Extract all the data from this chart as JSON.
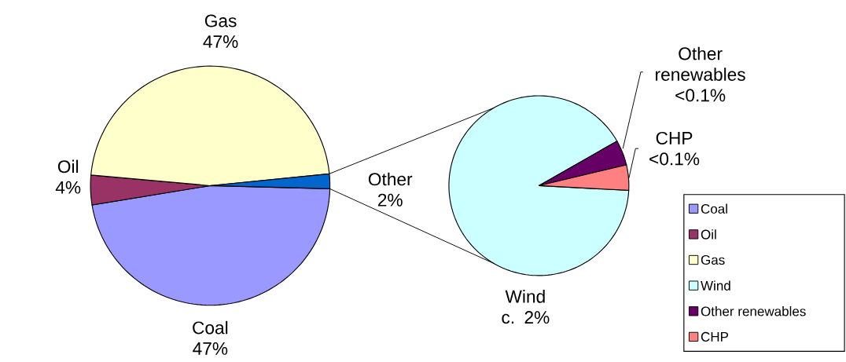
{
  "chart_data": [
    {
      "type": "pie",
      "categories": [
        "Coal",
        "Oil",
        "Gas",
        "Other"
      ],
      "values": [
        47,
        4,
        47,
        2
      ],
      "value_labels": [
        "47%",
        "4%",
        "47%",
        "2%"
      ],
      "colors": [
        "#9999ff",
        "#993366",
        "#ffffcc",
        "#0066cc"
      ],
      "legend": "right"
    },
    {
      "type": "pie",
      "categories": [
        "Wind",
        "Other renewables",
        "CHP"
      ],
      "values": [
        2,
        0.1,
        0.1
      ],
      "value_labels": [
        "c. 2%",
        "<0.1%",
        "<0.1%"
      ],
      "colors": [
        "#ccffff",
        "#660066",
        "#ff8080"
      ],
      "legend": "right"
    }
  ]
}
